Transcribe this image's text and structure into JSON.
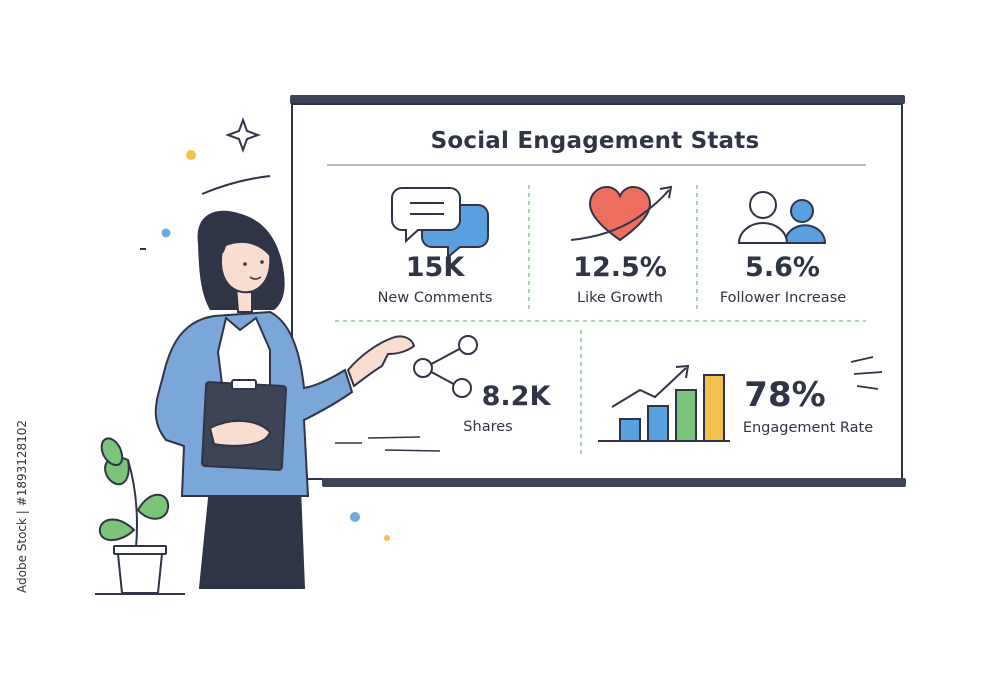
{
  "board": {
    "title": "Social Engagement Stats"
  },
  "stats": [
    {
      "value": "15K",
      "label": "New Comments",
      "icon": "chat-bubbles-icon"
    },
    {
      "value": "12.5%",
      "label": "Like Growth",
      "icon": "heart-trend-icon"
    },
    {
      "value": "5.6%",
      "label": "Follower Increase",
      "icon": "people-icon"
    },
    {
      "value": "8.2K",
      "label": "Shares",
      "icon": "share-icon"
    },
    {
      "value": "78%",
      "label": "Engagement Rate",
      "icon": "bar-trend-icon"
    }
  ],
  "stock_id": "Adobe Stock | #1893128102",
  "colors": {
    "ink": "#2f3546",
    "blue": "#4a90d9",
    "light_blue": "#7fb0de",
    "green": "#7cc47a",
    "yellow": "#f2c14e",
    "red": "#ee6e5f",
    "jacket": "#7aa7d8"
  }
}
